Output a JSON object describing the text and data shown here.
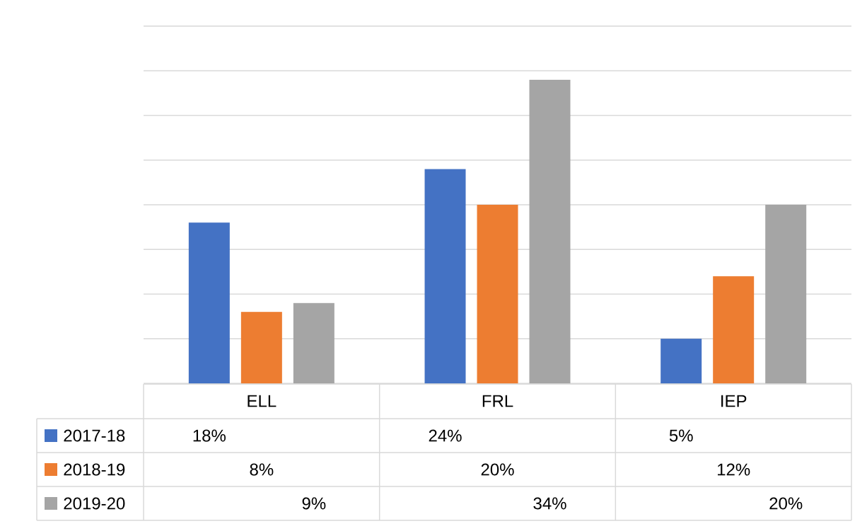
{
  "chart_data": {
    "type": "bar",
    "categories": [
      "ELL",
      "FRL",
      "IEP"
    ],
    "series": [
      {
        "name": "2017-18",
        "color": "#4472c4",
        "values": [
          18,
          24,
          5
        ],
        "value_labels": [
          "18%",
          "24%",
          "5%"
        ]
      },
      {
        "name": "2018-19",
        "color": "#ed7d31",
        "values": [
          8,
          20,
          12
        ],
        "value_labels": [
          "8%",
          "20%",
          "12%"
        ]
      },
      {
        "name": "2019-20",
        "color": "#a5a5a5",
        "values": [
          9,
          34,
          20
        ],
        "value_labels": [
          "9%",
          "34%",
          "20%"
        ]
      }
    ],
    "ylim": [
      0,
      40
    ],
    "yticks": [
      {
        "value": 0,
        "label": null
      },
      {
        "value": 5,
        "label": null
      },
      {
        "value": 10,
        "label": null
      },
      {
        "value": 15,
        "label": null
      },
      {
        "value": 20,
        "label": null
      },
      {
        "value": 25,
        "label": null
      },
      {
        "value": 30,
        "label": null
      },
      {
        "value": 35,
        "label": null
      },
      {
        "value": 40,
        "label": null
      }
    ],
    "grid": "y",
    "legend": "bottom",
    "tick_labels": "x"
  }
}
